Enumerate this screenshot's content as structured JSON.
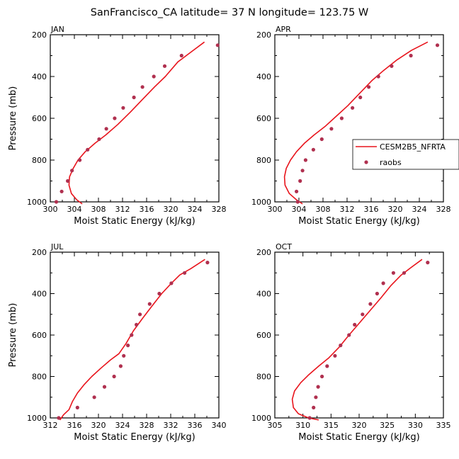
{
  "figure": {
    "title": "SanFrancisco_CA  latitude= 37 N longitude= 123.75 W"
  },
  "legend": {
    "model_label": "CESM2B5_NFRTA",
    "obs_label": "raobs"
  },
  "colors": {
    "model": "#e8141c",
    "obs": "#b0304f",
    "axis": "#000000"
  },
  "chart_data": [
    {
      "type": "line",
      "panel": "JAN",
      "title": "JAN",
      "xlabel": "Moist Static Energy (kJ/kg)",
      "ylabel": "Pressure (mb)",
      "xlim": [
        300,
        328
      ],
      "ylim": [
        1000,
        200
      ],
      "xticks": [
        300,
        304,
        308,
        312,
        316,
        320,
        324,
        328
      ],
      "yticks": [
        200,
        400,
        600,
        800,
        1000
      ],
      "series": [
        {
          "name": "CESM2B5_NFRTA",
          "kind": "line",
          "x": [
            305.3,
            304.4,
            303.5,
            303.1,
            303.2,
            303.8,
            304.6,
            305.8,
            307.4,
            309.2,
            311.2,
            313.3,
            315.3,
            317.3,
            319.1,
            321.2,
            323.5,
            325.6
          ],
          "y": [
            1010,
            990,
            960,
            920,
            880,
            840,
            800,
            760,
            720,
            680,
            630,
            570,
            510,
            450,
            400,
            330,
            280,
            235
          ]
        },
        {
          "name": "raobs",
          "kind": "scatter",
          "x": [
            301.0,
            301.9,
            302.9,
            303.6,
            304.9,
            306.2,
            308.1,
            309.3,
            310.7,
            312.1,
            313.9,
            315.3,
            317.2,
            319.0,
            321.8,
            327.8
          ],
          "y": [
            1000,
            950,
            900,
            850,
            800,
            750,
            700,
            650,
            600,
            550,
            500,
            450,
            400,
            350,
            300,
            250
          ]
        }
      ]
    },
    {
      "type": "line",
      "panel": "APR",
      "title": "APR",
      "xlabel": "Moist Static Energy (kJ/kg)",
      "ylabel": "",
      "xlim": [
        300,
        328
      ],
      "ylim": [
        1000,
        200
      ],
      "xticks": [
        300,
        304,
        308,
        312,
        316,
        320,
        324,
        328
      ],
      "yticks": [
        200,
        400,
        600,
        800,
        1000
      ],
      "series": [
        {
          "name": "CESM2B5_NFRTA",
          "kind": "line",
          "x": [
            304.6,
            303.6,
            302.4,
            301.7,
            301.6,
            301.9,
            302.6,
            303.6,
            304.9,
            306.5,
            308.3,
            310.2,
            312.1,
            314.1,
            316.1,
            318.1,
            320.3,
            322.7,
            325.4
          ],
          "y": [
            1010,
            990,
            960,
            920,
            880,
            840,
            800,
            760,
            720,
            680,
            640,
            590,
            540,
            480,
            420,
            370,
            320,
            275,
            235
          ]
        },
        {
          "name": "raobs",
          "kind": "scatter",
          "x": [
            303.8,
            303.6,
            304.2,
            304.6,
            305.1,
            306.4,
            307.8,
            309.4,
            311.1,
            312.9,
            314.2,
            315.6,
            317.2,
            319.4,
            322.6,
            327.0
          ],
          "y": [
            1000,
            950,
            900,
            850,
            800,
            750,
            700,
            650,
            600,
            550,
            500,
            450,
            400,
            350,
            300,
            250
          ]
        }
      ]
    },
    {
      "type": "line",
      "panel": "JUL",
      "title": "JUL",
      "xlabel": "Moist Static Energy (kJ/kg)",
      "ylabel": "Pressure (mb)",
      "xlim": [
        312,
        340
      ],
      "ylim": [
        1000,
        200
      ],
      "xticks": [
        312,
        316,
        320,
        324,
        328,
        332,
        336,
        340
      ],
      "yticks": [
        200,
        400,
        600,
        800,
        1000
      ],
      "series": [
        {
          "name": "CESM2B5_NFRTA",
          "kind": "line",
          "x": [
            313.6,
            314.2,
            315.1,
            315.7,
            316.5,
            317.6,
            318.9,
            320.4,
            322.0,
            323.4,
            324.6,
            325.8,
            327.3,
            328.9,
            330.5,
            332.1,
            333.5,
            335.3,
            337.7
          ],
          "y": [
            1010,
            985,
            960,
            920,
            880,
            840,
            800,
            760,
            720,
            690,
            640,
            580,
            520,
            460,
            400,
            350,
            310,
            280,
            235
          ]
        },
        {
          "name": "raobs",
          "kind": "scatter",
          "x": [
            313.4,
            316.5,
            319.3,
            321.0,
            322.6,
            323.7,
            324.2,
            324.9,
            325.5,
            326.3,
            326.9,
            328.5,
            330.1,
            332.1,
            334.3,
            338.1
          ],
          "y": [
            1000,
            950,
            900,
            850,
            800,
            750,
            700,
            650,
            600,
            550,
            500,
            450,
            400,
            350,
            300,
            250
          ]
        }
      ]
    },
    {
      "type": "line",
      "panel": "OCT",
      "title": "OCT",
      "xlabel": "Moist Static Energy (kJ/kg)",
      "ylabel": "",
      "xlim": [
        305,
        335
      ],
      "ylim": [
        1000,
        200
      ],
      "xticks": [
        305,
        310,
        315,
        320,
        325,
        330,
        335
      ],
      "yticks": [
        200,
        400,
        600,
        800,
        1000
      ],
      "series": [
        {
          "name": "CESM2B5_NFRTA",
          "kind": "line",
          "x": [
            312.8,
            311.0,
            309.2,
            308.3,
            308.1,
            308.5,
            309.6,
            311.1,
            312.8,
            314.6,
            316.4,
            318.2,
            320.1,
            322.0,
            323.9,
            325.7,
            327.5,
            329.2,
            331.2
          ],
          "y": [
            1010,
            1000,
            980,
            950,
            910,
            870,
            830,
            790,
            750,
            710,
            660,
            600,
            540,
            480,
            420,
            360,
            310,
            275,
            235
          ]
        },
        {
          "name": "raobs",
          "kind": "scatter",
          "x": [
            311.2,
            311.9,
            312.3,
            312.7,
            313.4,
            314.3,
            315.7,
            316.7,
            318.2,
            319.2,
            320.6,
            322.0,
            323.2,
            324.3,
            326.1,
            328.0,
            332.2
          ],
          "y": [
            1000,
            950,
            900,
            850,
            800,
            750,
            700,
            650,
            600,
            550,
            500,
            450,
            400,
            350,
            300,
            300,
            250
          ]
        }
      ]
    }
  ]
}
